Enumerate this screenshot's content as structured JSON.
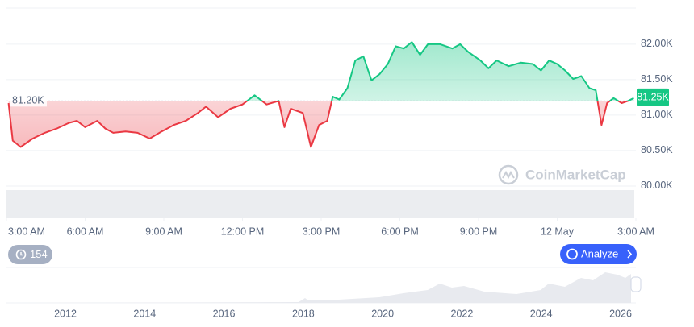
{
  "chart_data": {
    "type": "line",
    "x": [
      0.86,
      1.02,
      1.32,
      1.78,
      2.24,
      2.7,
      3.16,
      3.47,
      3.78,
      4.24,
      4.55,
      4.85,
      5.32,
      5.78,
      6.24,
      6.7,
      7.16,
      7.62,
      8.08,
      8.39,
      8.85,
      9.32,
      9.78,
      10.24,
      10.7,
      11.16,
      11.38,
      11.62,
      12.08,
      12.39,
      12.7,
      13.01,
      13.22,
      13.47,
      13.78,
      14.08,
      14.39,
      14.7,
      15.01,
      15.32,
      15.62,
      15.93,
      16.24,
      16.55,
      16.85,
      17.32,
      17.78,
      18.08,
      18.39,
      18.85,
      19.16,
      19.47,
      19.93,
      20.39,
      20.85,
      21.16,
      21.47,
      21.78,
      22.08,
      22.39,
      22.7,
      23.01,
      23.25,
      23.47,
      23.68,
      23.93,
      24.24,
      24.48,
      24.7
    ],
    "values": [
      81170,
      80640,
      80550,
      80670,
      80750,
      80810,
      80890,
      80920,
      80830,
      80920,
      80810,
      80750,
      80770,
      80750,
      80670,
      80770,
      80860,
      80920,
      81030,
      81120,
      80970,
      81090,
      81150,
      81280,
      81150,
      81200,
      80830,
      81090,
      81030,
      80550,
      80860,
      80920,
      81260,
      81220,
      81380,
      81770,
      81830,
      81490,
      81580,
      81720,
      81970,
      81940,
      82030,
      81850,
      82000,
      82000,
      81940,
      82000,
      81890,
      81770,
      81660,
      81770,
      81690,
      81740,
      81720,
      81630,
      81770,
      81720,
      81630,
      81510,
      81550,
      81380,
      81350,
      80860,
      81170,
      81240,
      81170,
      81200,
      81240
    ],
    "colors": {
      "up": "#16c784",
      "down": "#ea3943"
    },
    "baseline": {
      "value": 81200,
      "label": "81.20K"
    },
    "current": {
      "value": 81250,
      "label": "81.25K"
    },
    "xlim": [
      0.78,
      24.78
    ],
    "xticks": [
      {
        "value": 0.78,
        "label": "3:00 AM"
      },
      {
        "value": 3.78,
        "label": "6:00 AM"
      },
      {
        "value": 6.78,
        "label": "9:00 AM"
      },
      {
        "value": 9.78,
        "label": "12:00 PM"
      },
      {
        "value": 12.78,
        "label": "3:00 PM"
      },
      {
        "value": 15.78,
        "label": "6:00 PM"
      },
      {
        "value": 18.78,
        "label": "9:00 PM"
      },
      {
        "value": 21.78,
        "label": "12 May"
      },
      {
        "value": 24.78,
        "label": "3:00 AM"
      }
    ],
    "ylim": [
      79545,
      82510
    ],
    "yticks": [
      {
        "value": 80000,
        "label": "80.00K"
      },
      {
        "value": 80500,
        "label": "80.50K"
      },
      {
        "value": 81000,
        "label": "81.00K"
      },
      {
        "value": 81500,
        "label": "81.50K"
      },
      {
        "value": 82000,
        "label": "82.00K"
      }
    ],
    "grid": true,
    "watermark": "CoinMarketCap",
    "badge": "154",
    "button": "Analyze",
    "overview_years": [
      "2012",
      "2014",
      "2016",
      "2018",
      "2020",
      "2022",
      "2024",
      "2026"
    ]
  }
}
